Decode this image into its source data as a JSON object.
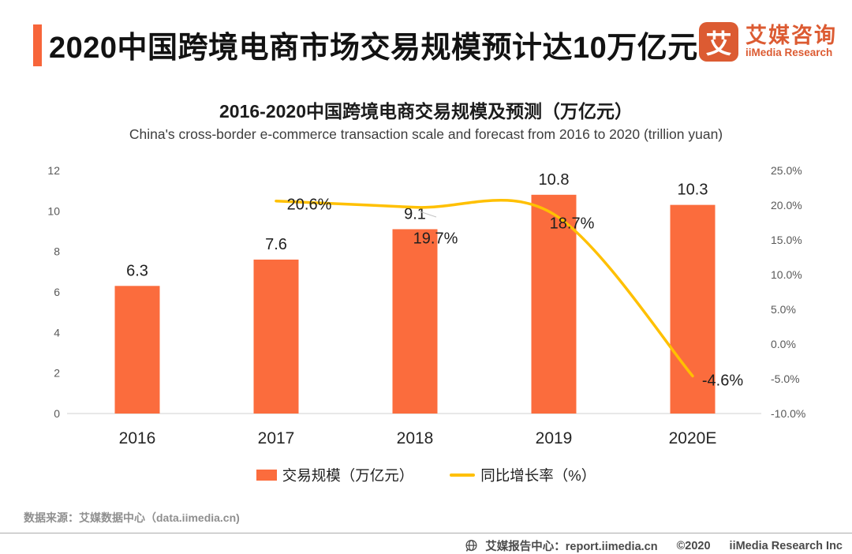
{
  "header": {
    "title": "2020中国跨境电商市场交易规模预计达10万亿元",
    "logo": {
      "glyph": "艾",
      "brand_cn": "艾媒咨询",
      "brand_en": "iiMedia Research"
    }
  },
  "chart_data": {
    "type": "bar",
    "title": "2016-2020中国跨境电商交易规模及预测（万亿元）",
    "subtitle": "China's cross-border e-commerce transaction scale and forecast from 2016 to 2020 (trillion yuan)",
    "categories": [
      "2016",
      "2017",
      "2018",
      "2019",
      "2020E"
    ],
    "series": [
      {
        "name": "交易规模（万亿元）",
        "type": "bar",
        "axis": "left",
        "color": "#FB6C3D",
        "values": [
          6.3,
          7.6,
          9.1,
          10.8,
          10.3
        ]
      },
      {
        "name": "同比增长率（%）",
        "type": "line",
        "axis": "right",
        "color": "#FFC000",
        "values": [
          null,
          20.6,
          19.7,
          18.7,
          -4.6
        ]
      }
    ],
    "left_axis": {
      "min": 0,
      "max": 12,
      "ticks": [
        0,
        2,
        4,
        6,
        8,
        10,
        12
      ]
    },
    "right_axis": {
      "min": -10,
      "max": 25,
      "ticks": [
        -10,
        -5,
        0,
        5,
        10,
        15,
        20,
        25
      ],
      "format": "percent1"
    },
    "grid": false,
    "legend_position": "bottom"
  },
  "footer": {
    "source": "数据来源：艾媒数据中心（data.iimedia.cn)",
    "report_center": "艾媒报告中心：report.iimedia.cn",
    "copyright": "©2020",
    "company": "iiMedia Research Inc"
  },
  "colors": {
    "bar": "#FB6C3D",
    "line": "#FFC000",
    "accent": "#F7653A",
    "logo": "#DC5B32"
  }
}
